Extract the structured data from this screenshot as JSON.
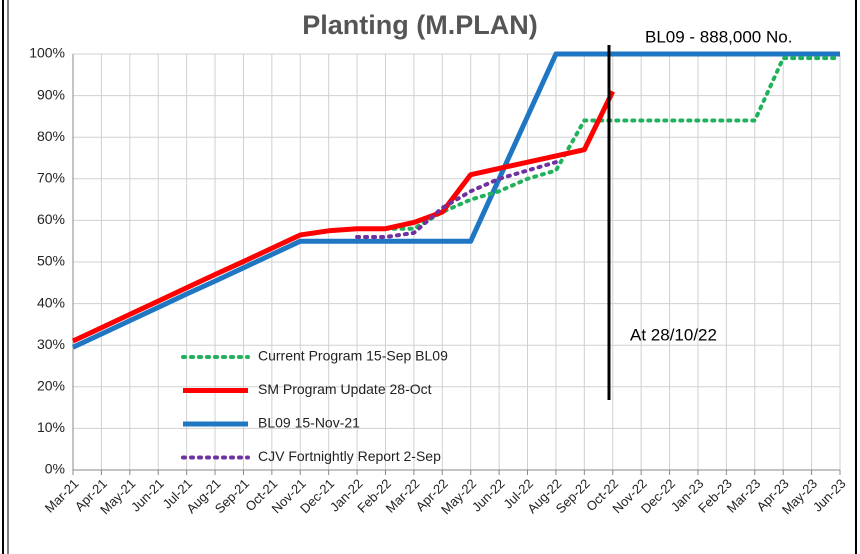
{
  "chart_data": {
    "type": "line",
    "title": "Planting (M.PLAN)",
    "annotations": [
      "BL09 - 888,000 No.",
      "At 28/10/22"
    ],
    "categories": [
      "Mar-21",
      "Apr-21",
      "May-21",
      "Jun-21",
      "Jul-21",
      "Aug-21",
      "Sep-21",
      "Oct-21",
      "Nov-21",
      "Dec-21",
      "Jan-22",
      "Feb-22",
      "Mar-22",
      "Apr-22",
      "May-22",
      "Jun-22",
      "Jul-22",
      "Aug-22",
      "Sep-22",
      "Oct-22",
      "Nov-22",
      "Dec-22",
      "Jan-23",
      "Feb-23",
      "Mar-23",
      "Apr-23",
      "May-23",
      "Jun-23"
    ],
    "series": [
      {
        "name": "Current Program 15-Sep BL09",
        "color": "#1fb25a",
        "style": "dotted",
        "values": [
          null,
          null,
          null,
          null,
          null,
          null,
          null,
          null,
          null,
          null,
          null,
          58,
          58,
          62,
          65,
          67,
          70,
          72,
          84,
          84,
          84,
          84,
          84,
          84,
          84,
          99,
          99,
          99
        ]
      },
      {
        "name": "SM Program Update 28-Oct",
        "color": "#ff0000",
        "style": "solid",
        "values": [
          31,
          34.2,
          37.4,
          40.6,
          43.8,
          47,
          50.1,
          53.3,
          56.5,
          57.5,
          58,
          58,
          59.5,
          62,
          71,
          72.5,
          74,
          75.5,
          77,
          91,
          null,
          null,
          null,
          null,
          null,
          null,
          null,
          null
        ]
      },
      {
        "name": "BL09 15-Nov-21",
        "color": "#1f77c4",
        "style": "solid",
        "values": [
          29.5,
          32.7,
          35.9,
          39.1,
          42.3,
          45.4,
          48.6,
          51.8,
          55,
          55,
          55,
          55,
          55,
          55,
          55,
          70,
          85,
          100,
          100,
          100,
          100,
          100,
          100,
          100,
          100,
          100,
          100,
          100
        ]
      },
      {
        "name": "CJV Fortnightly Report 2-Sep",
        "color": "#7030a0",
        "style": "dotted",
        "values": [
          null,
          null,
          null,
          null,
          null,
          null,
          null,
          null,
          null,
          null,
          56,
          56,
          57,
          63,
          67,
          70,
          72,
          74,
          null,
          null,
          null,
          null,
          null,
          null,
          null,
          null,
          null,
          null
        ]
      }
    ],
    "ylim": [
      0,
      100
    ],
    "yticks": [
      {
        "value": 0,
        "label": "0%"
      },
      {
        "value": 10,
        "label": "10%"
      },
      {
        "value": 20,
        "label": "20%"
      },
      {
        "value": 30,
        "label": "30%"
      },
      {
        "value": 40,
        "label": "40%"
      },
      {
        "value": 50,
        "label": "50%"
      },
      {
        "value": 60,
        "label": "60%"
      },
      {
        "value": 70,
        "label": "70%"
      },
      {
        "value": 80,
        "label": "80%"
      },
      {
        "value": 90,
        "label": "90%"
      },
      {
        "value": 100,
        "label": "100%"
      }
    ],
    "grid": true
  }
}
